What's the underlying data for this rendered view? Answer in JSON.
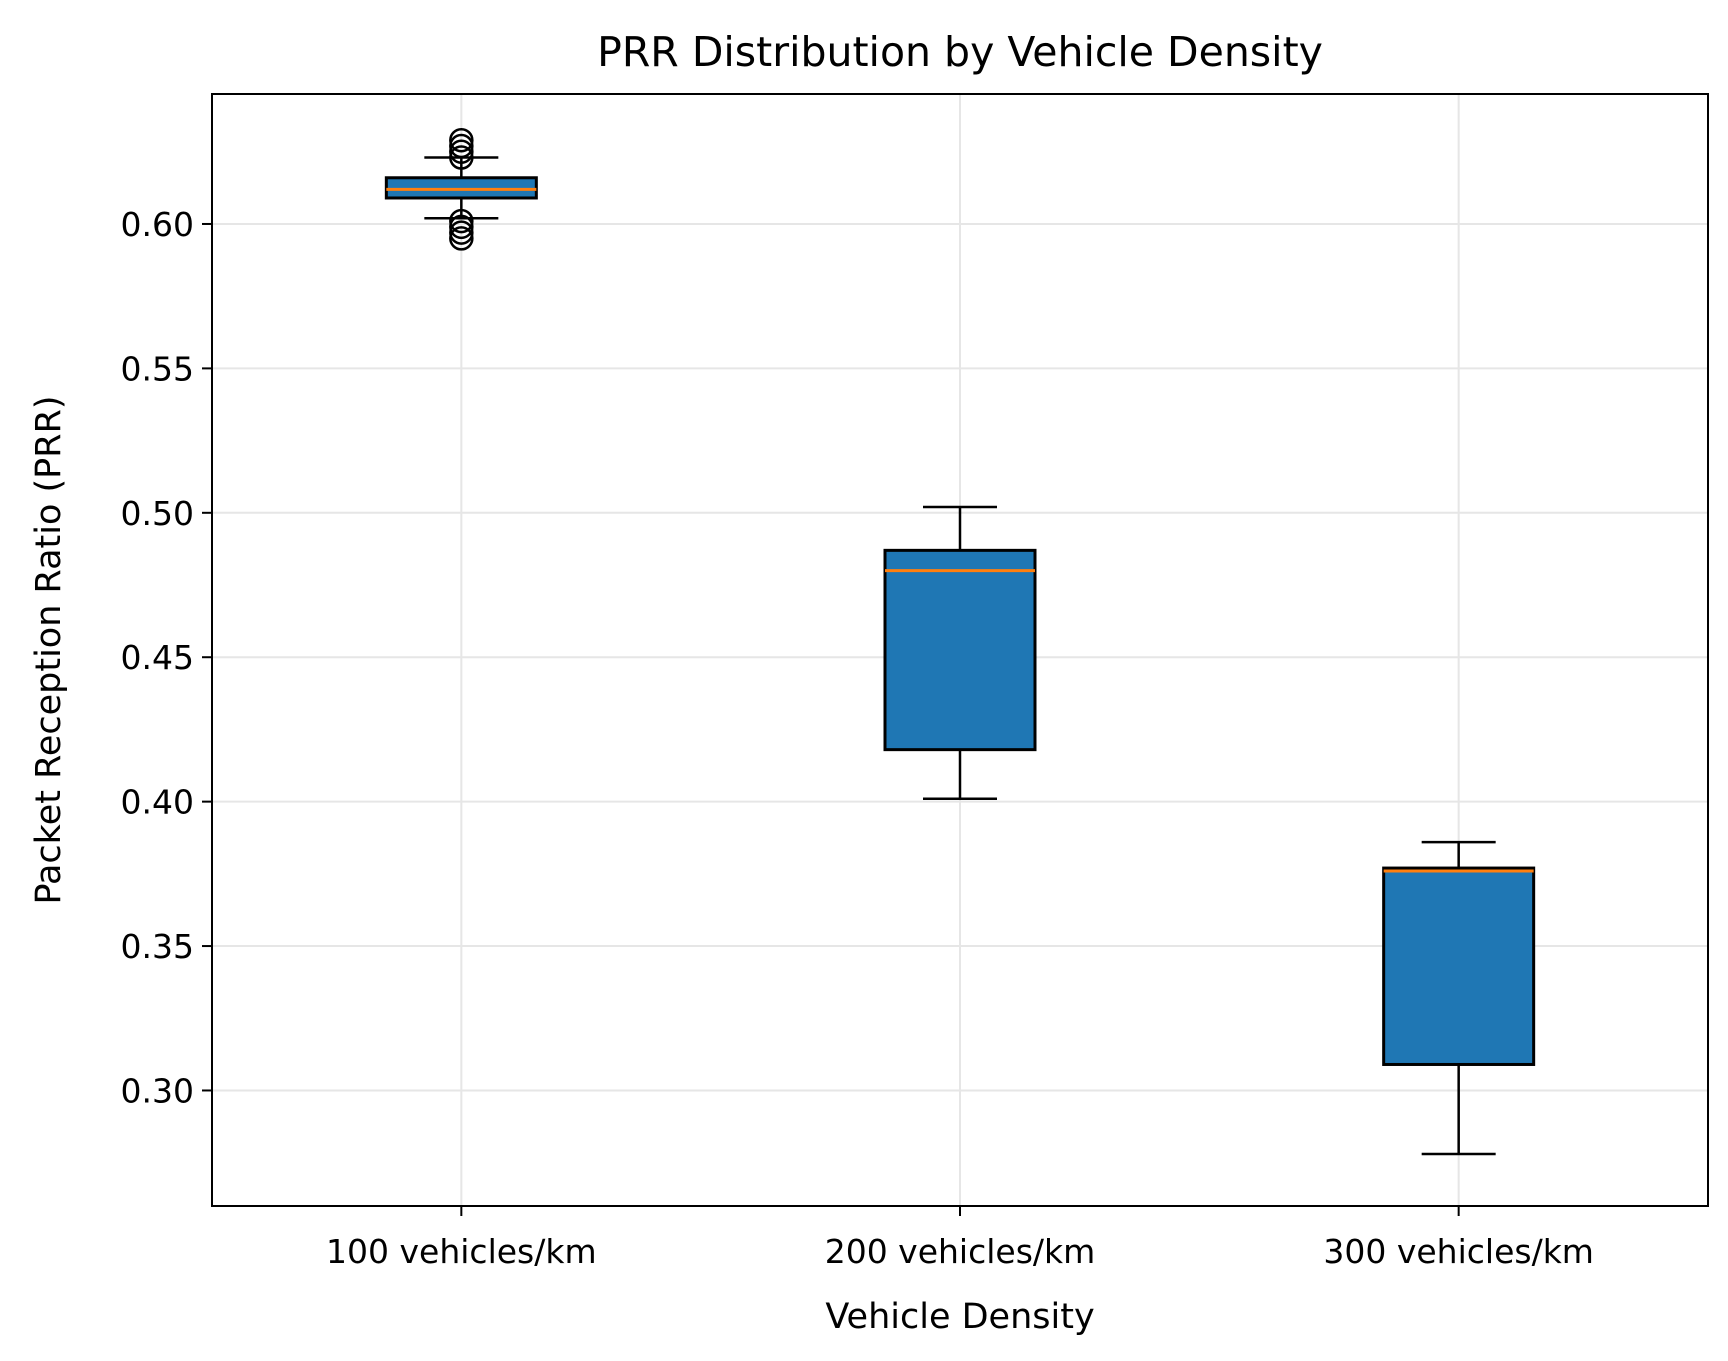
{
  "chart_data": {
    "type": "box",
    "title": "PRR Distribution by Vehicle Density",
    "xlabel": "Vehicle Density",
    "ylabel": "Packet Reception Ratio (PRR)",
    "ylim": [
      0.26,
      0.645
    ],
    "yticks": [
      0.3,
      0.35,
      0.4,
      0.45,
      0.5,
      0.55,
      0.6
    ],
    "ytick_labels": [
      "0.30",
      "0.35",
      "0.40",
      "0.45",
      "0.50",
      "0.55",
      "0.60"
    ],
    "grid": true,
    "box_color": "#1f77b4",
    "median_color": "#ff7f0e",
    "categories": [
      "100 vehicles/km",
      "200 vehicles/km",
      "300 vehicles/km"
    ],
    "boxes": [
      {
        "category": "100 vehicles/km",
        "whisker_low": 0.602,
        "q1": 0.609,
        "median": 0.612,
        "q3": 0.616,
        "whisker_high": 0.623,
        "fliers": [
          0.595,
          0.597,
          0.599,
          0.601,
          0.623,
          0.625,
          0.627,
          0.629
        ]
      },
      {
        "category": "200 vehicles/km",
        "whisker_low": 0.401,
        "q1": 0.418,
        "median": 0.48,
        "q3": 0.487,
        "whisker_high": 0.502,
        "fliers": []
      },
      {
        "category": "300 vehicles/km",
        "whisker_low": 0.278,
        "q1": 0.309,
        "median": 0.376,
        "q3": 0.377,
        "whisker_high": 0.386,
        "fliers": []
      }
    ]
  }
}
